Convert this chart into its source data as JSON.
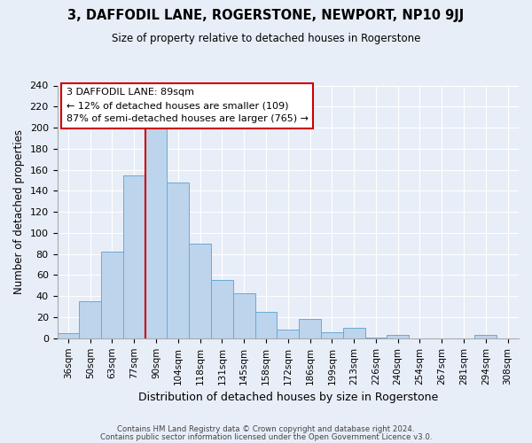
{
  "title": "3, DAFFODIL LANE, ROGERSTONE, NEWPORT, NP10 9JJ",
  "subtitle": "Size of property relative to detached houses in Rogerstone",
  "xlabel": "Distribution of detached houses by size in Rogerstone",
  "ylabel": "Number of detached properties",
  "bar_labels": [
    "36sqm",
    "50sqm",
    "63sqm",
    "77sqm",
    "90sqm",
    "104sqm",
    "118sqm",
    "131sqm",
    "145sqm",
    "158sqm",
    "172sqm",
    "186sqm",
    "199sqm",
    "213sqm",
    "226sqm",
    "240sqm",
    "254sqm",
    "267sqm",
    "281sqm",
    "294sqm",
    "308sqm"
  ],
  "bar_values": [
    5,
    35,
    82,
    155,
    200,
    148,
    90,
    55,
    43,
    25,
    8,
    18,
    6,
    10,
    1,
    3,
    0,
    0,
    0,
    3,
    0
  ],
  "bar_color": "#bdd4ed",
  "bar_edge_color": "#6aaad4",
  "vline_color": "#cc0000",
  "annotation_text": "3 DAFFODIL LANE: 89sqm\n← 12% of detached houses are smaller (109)\n87% of semi-detached houses are larger (765) →",
  "annotation_box_color": "#ffffff",
  "annotation_box_edge": "#cc0000",
  "ylim": [
    0,
    240
  ],
  "yticks": [
    0,
    20,
    40,
    60,
    80,
    100,
    120,
    140,
    160,
    180,
    200,
    220,
    240
  ],
  "footer1": "Contains HM Land Registry data © Crown copyright and database right 2024.",
  "footer2": "Contains public sector information licensed under the Open Government Licence v3.0.",
  "bg_color": "#e8eef8",
  "plot_bg_color": "#e8eef8",
  "grid_color": "#ffffff"
}
